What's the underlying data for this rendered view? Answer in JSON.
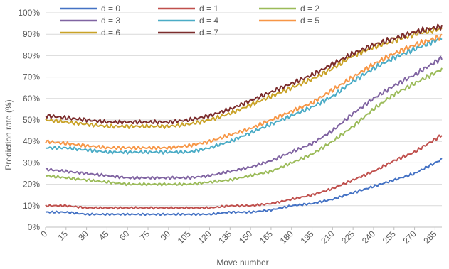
{
  "chart_data": {
    "type": "line",
    "title": "",
    "xlabel": "Move number",
    "ylabel": "Prediction rate (%)",
    "xlim": [
      0,
      290
    ],
    "ylim": [
      0,
      100
    ],
    "y_ticks": [
      "0%",
      "10%",
      "20%",
      "30%",
      "40%",
      "50%",
      "60%",
      "70%",
      "80%",
      "90%",
      "100%"
    ],
    "x_ticks": [
      "0",
      "15",
      "30",
      "45",
      "60",
      "75",
      "90",
      "105",
      "120",
      "135",
      "150",
      "165",
      "180",
      "195",
      "210",
      "225",
      "240",
      "255",
      "270",
      "285"
    ],
    "grid": "horizontal",
    "legend_position": "top-left",
    "x": [
      0,
      15,
      30,
      45,
      60,
      75,
      90,
      105,
      120,
      135,
      150,
      165,
      180,
      195,
      210,
      225,
      240,
      255,
      270,
      285
    ],
    "series": [
      {
        "name": "d = 0",
        "color": "#4472C4",
        "values": [
          7,
          7,
          6,
          6,
          6,
          6,
          6,
          6,
          6,
          7,
          7,
          8,
          10,
          11,
          13,
          16,
          19,
          22,
          25,
          30
        ]
      },
      {
        "name": "d = 1",
        "color": "#C0504D",
        "values": [
          10,
          10,
          9,
          9,
          9,
          9,
          9,
          9,
          9,
          10,
          10,
          11,
          13,
          15,
          18,
          22,
          26,
          31,
          35,
          41
        ]
      },
      {
        "name": "d = 2",
        "color": "#9BBB59",
        "values": [
          24,
          23,
          22,
          21,
          20,
          20,
          20,
          20,
          21,
          22,
          24,
          26,
          30,
          34,
          40,
          47,
          55,
          62,
          67,
          72
        ]
      },
      {
        "name": "d = 3",
        "color": "#8064A2",
        "values": [
          27,
          26,
          25,
          24,
          23,
          23,
          23,
          23,
          24,
          26,
          28,
          31,
          35,
          39,
          45,
          53,
          60,
          66,
          71,
          77
        ]
      },
      {
        "name": "d = 4",
        "color": "#4BACC6",
        "values": [
          37,
          37,
          36,
          35,
          35,
          35,
          35,
          35,
          37,
          40,
          44,
          48,
          52,
          56,
          61,
          68,
          74,
          79,
          83,
          87
        ]
      },
      {
        "name": "d = 5",
        "color": "#F79646",
        "values": [
          40,
          39,
          38,
          37,
          37,
          37,
          37,
          38,
          40,
          43,
          46,
          50,
          54,
          58,
          64,
          70,
          76,
          81,
          85,
          88
        ]
      },
      {
        "name": "d = 6",
        "color": "#C9A227",
        "values": [
          50,
          49,
          48,
          47,
          47,
          47,
          47,
          48,
          50,
          53,
          57,
          61,
          65,
          69,
          74,
          80,
          84,
          87,
          90,
          92
        ]
      },
      {
        "name": "d = 7",
        "color": "#7B2C2C",
        "values": [
          52,
          51,
          50,
          49,
          49,
          49,
          49,
          50,
          52,
          55,
          59,
          63,
          67,
          71,
          76,
          81,
          85,
          88,
          91,
          93
        ]
      }
    ]
  }
}
